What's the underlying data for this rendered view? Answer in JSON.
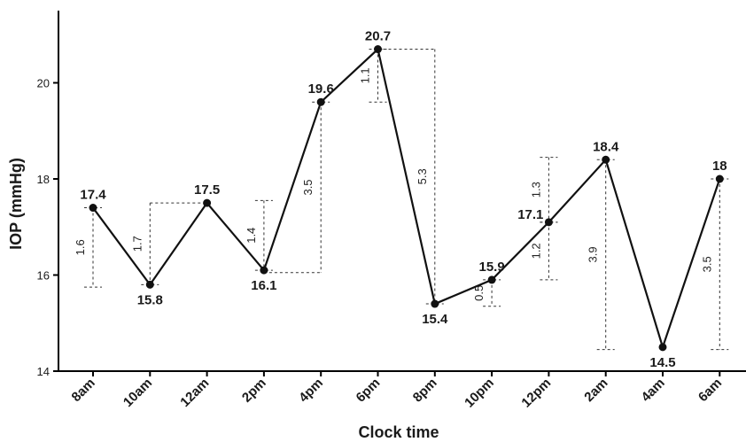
{
  "chart_data": {
    "type": "line",
    "title": "",
    "xlabel": "Clock time",
    "ylabel": "IOP (mmHg)",
    "ylim": [
      14,
      21.5
    ],
    "yticks": [
      "14",
      "16",
      "18",
      "20"
    ],
    "categories": [
      "8am",
      "10am",
      "12am",
      "2pm",
      "4pm",
      "6pm",
      "8pm",
      "10pm",
      "12pm",
      "2am",
      "4am",
      "6am"
    ],
    "series": [
      {
        "values": [
          17.4,
          15.8,
          17.5,
          16.1,
          19.6,
          20.7,
          15.4,
          15.9,
          17.1,
          18.4,
          14.5,
          18.0
        ]
      }
    ],
    "point_labels": [
      "17.4",
      "15.8",
      "17.5",
      "16.1",
      "19.6",
      "20.7",
      "15.4",
      "15.9",
      "17.1",
      "18.4",
      "14.5",
      "18"
    ],
    "point_label_positions": [
      "above",
      "below",
      "above",
      "below",
      "above",
      "above",
      "below",
      "above",
      "left",
      "above",
      "below",
      "above"
    ],
    "differences": [
      {
        "label": "1.6",
        "x": "8am",
        "from": 15.75,
        "to": 17.4,
        "hline": [
          "8am",
          "8am"
        ]
      },
      {
        "label": "1.7",
        "x": "10am",
        "from": 15.8,
        "to": 17.5,
        "hline": [
          "10am",
          "12am"
        ]
      },
      {
        "label": "1.4",
        "x": "2pm",
        "from": 16.1,
        "to": 17.55,
        "hline": [
          "2pm",
          "2pm"
        ]
      },
      {
        "label": "3.5",
        "x": "4pm",
        "from": 16.05,
        "to": 19.6,
        "hline": [
          "2pm",
          "4pm"
        ]
      },
      {
        "label": "1.1",
        "x": "6pm",
        "from": 19.6,
        "to": 20.7,
        "hline": [
          "6pm",
          "6pm"
        ]
      },
      {
        "label": "5.3",
        "x": "8pm",
        "from": 15.4,
        "to": 20.7,
        "hline": [
          "6pm",
          "8pm"
        ]
      },
      {
        "label": "0.5",
        "x": "10pm",
        "from": 15.35,
        "to": 15.9,
        "hline": [
          "10pm",
          "10pm"
        ]
      },
      {
        "label": "1.3",
        "x": "12pm",
        "from": 17.1,
        "to": 18.45,
        "hline": [
          "12pm",
          "12pm"
        ]
      },
      {
        "label": "1.2",
        "x": "12pm",
        "from": 15.9,
        "to": 17.1,
        "hline": [
          "12pm",
          "12pm"
        ]
      },
      {
        "label": "3.9",
        "x": "2am",
        "from": 14.45,
        "to": 18.4,
        "hline": [
          "2am",
          "2am"
        ]
      },
      {
        "label": "3.5",
        "x": "6am",
        "from": 14.45,
        "to": 18.0,
        "hline": [
          "6am",
          "6am"
        ]
      }
    ],
    "colors": {
      "line": "#111111",
      "marker": "#111111",
      "difference": "#333333"
    },
    "grid": false,
    "legend": "none"
  }
}
